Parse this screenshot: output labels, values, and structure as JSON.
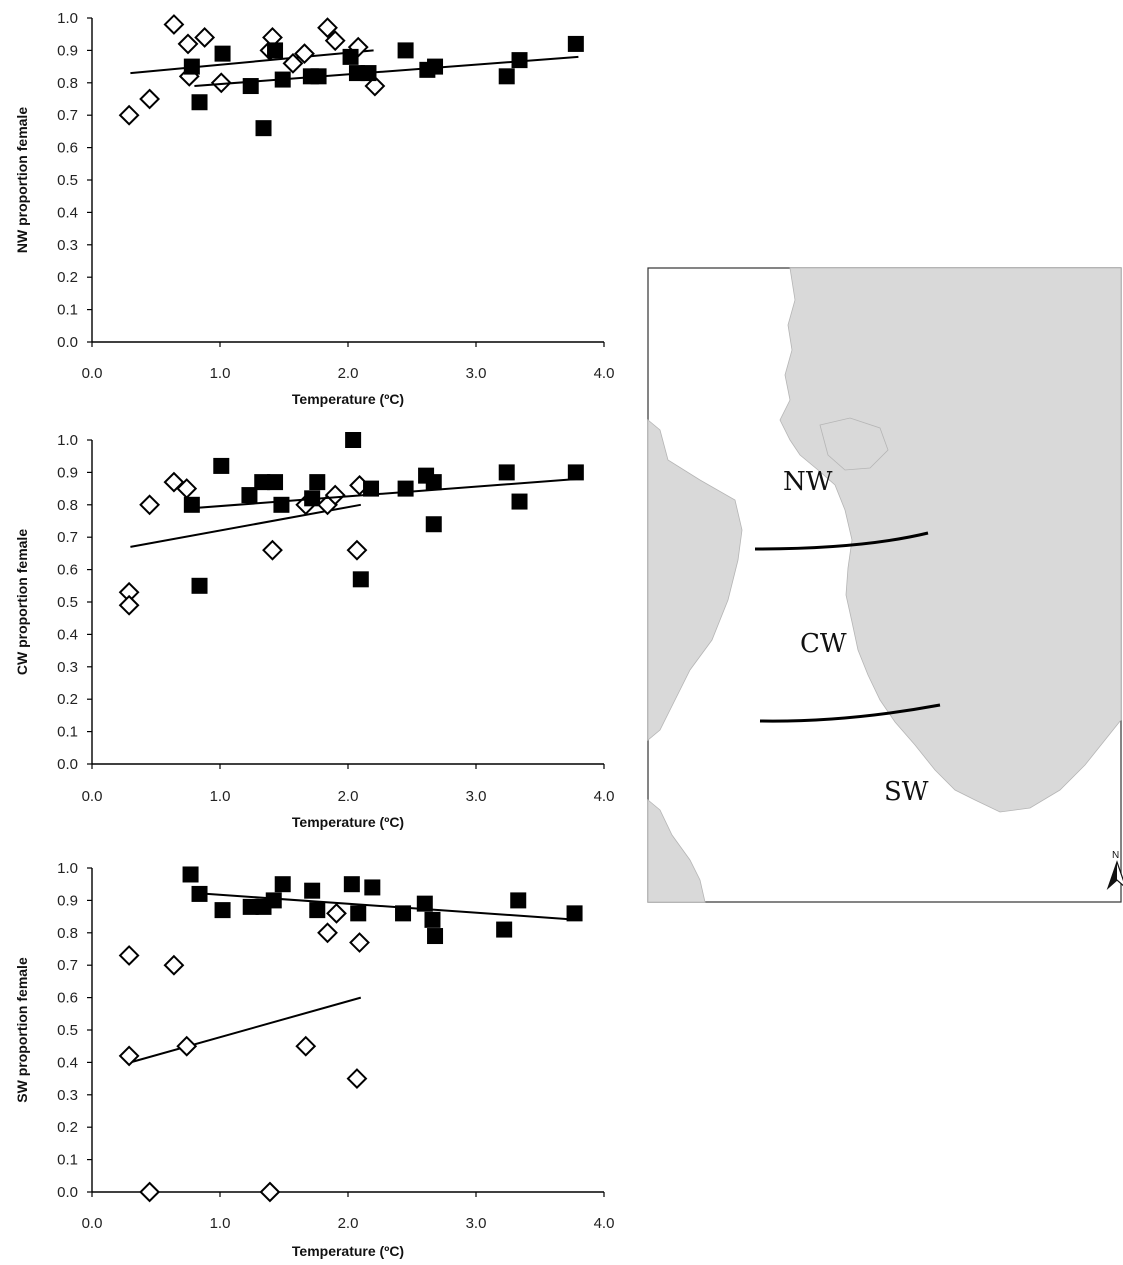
{
  "chart_data": [
    {
      "type": "scatter",
      "title": "",
      "xlabel": "Temperature (ºC)",
      "ylabel": "NW proportion female",
      "xlim": [
        0,
        4
      ],
      "ylim": [
        0,
        1
      ],
      "xticks": [
        "0.0",
        "1.0",
        "2.0",
        "3.0",
        "4.0"
      ],
      "yticks": [
        "0.0",
        "0.1",
        "0.2",
        "0.3",
        "0.4",
        "0.5",
        "0.6",
        "0.7",
        "0.8",
        "0.9",
        "1.0"
      ],
      "series": [
        {
          "marker": "open-diamond",
          "points": [
            [
              0.29,
              0.7
            ],
            [
              0.45,
              0.75
            ],
            [
              0.64,
              0.98
            ],
            [
              0.75,
              0.92
            ],
            [
              0.76,
              0.82
            ],
            [
              0.88,
              0.94
            ],
            [
              1.01,
              0.8
            ],
            [
              1.39,
              0.9
            ],
            [
              1.41,
              0.94
            ],
            [
              1.57,
              0.86
            ],
            [
              1.66,
              0.89
            ],
            [
              1.84,
              0.97
            ],
            [
              1.9,
              0.93
            ],
            [
              2.08,
              0.91
            ],
            [
              2.21,
              0.79
            ]
          ],
          "trendline": [
            [
              0.3,
              0.83
            ],
            [
              2.2,
              0.9
            ]
          ]
        },
        {
          "marker": "filled-square",
          "points": [
            [
              0.78,
              0.85
            ],
            [
              0.84,
              0.74
            ],
            [
              1.02,
              0.89
            ],
            [
              1.24,
              0.79
            ],
            [
              1.34,
              0.66
            ],
            [
              1.43,
              0.9
            ],
            [
              1.49,
              0.81
            ],
            [
              1.71,
              0.82
            ],
            [
              1.77,
              0.82
            ],
            [
              2.02,
              0.88
            ],
            [
              2.07,
              0.83
            ],
            [
              2.16,
              0.83
            ],
            [
              2.45,
              0.9
            ],
            [
              2.62,
              0.84
            ],
            [
              2.68,
              0.85
            ],
            [
              3.24,
              0.82
            ],
            [
              3.34,
              0.87
            ],
            [
              3.78,
              0.92
            ]
          ],
          "trendline": [
            [
              0.8,
              0.79
            ],
            [
              3.8,
              0.88
            ]
          ]
        }
      ]
    },
    {
      "type": "scatter",
      "title": "",
      "xlabel": "Temperature (ºC)",
      "ylabel": "CW proportion female",
      "xlim": [
        0,
        4
      ],
      "ylim": [
        0,
        1
      ],
      "xticks": [
        "0.0",
        "1.0",
        "2.0",
        "3.0",
        "4.0"
      ],
      "yticks": [
        "0.0",
        "0.1",
        "0.2",
        "0.3",
        "0.4",
        "0.5",
        "0.6",
        "0.7",
        "0.8",
        "0.9",
        "1.0"
      ],
      "series": [
        {
          "marker": "open-diamond",
          "points": [
            [
              0.29,
              0.53
            ],
            [
              0.29,
              0.49
            ],
            [
              0.45,
              0.8
            ],
            [
              0.64,
              0.87
            ],
            [
              0.74,
              0.85
            ],
            [
              1.41,
              0.66
            ],
            [
              1.67,
              0.8
            ],
            [
              1.84,
              0.8
            ],
            [
              1.9,
              0.83
            ],
            [
              2.07,
              0.66
            ],
            [
              2.09,
              0.86
            ]
          ],
          "trendline": [
            [
              0.3,
              0.67
            ],
            [
              2.1,
              0.8
            ]
          ]
        },
        {
          "marker": "filled-square",
          "points": [
            [
              0.78,
              0.8
            ],
            [
              0.84,
              0.55
            ],
            [
              1.01,
              0.92
            ],
            [
              1.23,
              0.83
            ],
            [
              1.33,
              0.87
            ],
            [
              1.43,
              0.87
            ],
            [
              1.48,
              0.8
            ],
            [
              1.72,
              0.82
            ],
            [
              1.76,
              0.87
            ],
            [
              2.04,
              1.0
            ],
            [
              2.1,
              0.57
            ],
            [
              2.18,
              0.85
            ],
            [
              2.45,
              0.85
            ],
            [
              2.61,
              0.89
            ],
            [
              2.67,
              0.87
            ],
            [
              2.67,
              0.74
            ],
            [
              3.24,
              0.9
            ],
            [
              3.34,
              0.81
            ],
            [
              3.78,
              0.9
            ]
          ],
          "trendline": [
            [
              0.8,
              0.79
            ],
            [
              3.8,
              0.88
            ]
          ]
        }
      ]
    },
    {
      "type": "scatter",
      "title": "",
      "xlabel": "Temperature (ºC)",
      "ylabel": "SW proportion female",
      "xlim": [
        0,
        4
      ],
      "ylim": [
        0,
        1
      ],
      "xticks": [
        "0.0",
        "1.0",
        "2.0",
        "3.0",
        "4.0"
      ],
      "yticks": [
        "0.0",
        "0.1",
        "0.2",
        "0.3",
        "0.4",
        "0.5",
        "0.6",
        "0.7",
        "0.8",
        "0.9",
        "1.0"
      ],
      "series": [
        {
          "marker": "open-diamond",
          "points": [
            [
              0.29,
              0.73
            ],
            [
              0.29,
              0.42
            ],
            [
              0.45,
              0.0
            ],
            [
              0.64,
              0.7
            ],
            [
              0.74,
              0.45
            ],
            [
              1.39,
              0.0
            ],
            [
              1.67,
              0.45
            ],
            [
              1.84,
              0.8
            ],
            [
              1.91,
              0.86
            ],
            [
              2.07,
              0.35
            ],
            [
              2.09,
              0.77
            ]
          ],
          "trendline": [
            [
              0.3,
              0.4
            ],
            [
              2.1,
              0.6
            ]
          ]
        },
        {
          "marker": "filled-square",
          "points": [
            [
              0.77,
              0.98
            ],
            [
              0.84,
              0.92
            ],
            [
              1.02,
              0.87
            ],
            [
              1.24,
              0.88
            ],
            [
              1.34,
              0.88
            ],
            [
              1.42,
              0.9
            ],
            [
              1.49,
              0.95
            ],
            [
              1.72,
              0.93
            ],
            [
              1.76,
              0.87
            ],
            [
              2.03,
              0.95
            ],
            [
              2.08,
              0.86
            ],
            [
              2.19,
              0.94
            ],
            [
              2.43,
              0.86
            ],
            [
              2.6,
              0.89
            ],
            [
              2.66,
              0.84
            ],
            [
              2.68,
              0.79
            ],
            [
              3.22,
              0.81
            ],
            [
              3.33,
              0.9
            ],
            [
              3.77,
              0.86
            ]
          ],
          "trendline": [
            [
              0.9,
              0.92
            ],
            [
              3.8,
              0.84
            ]
          ]
        }
      ]
    }
  ],
  "map": {
    "region_labels": [
      "NW",
      "CW",
      "SW"
    ],
    "north_arrow_label": "N",
    "land_color": "#d9d9d9",
    "sea_color": "#ffffff",
    "boundary_color": "#000000"
  }
}
